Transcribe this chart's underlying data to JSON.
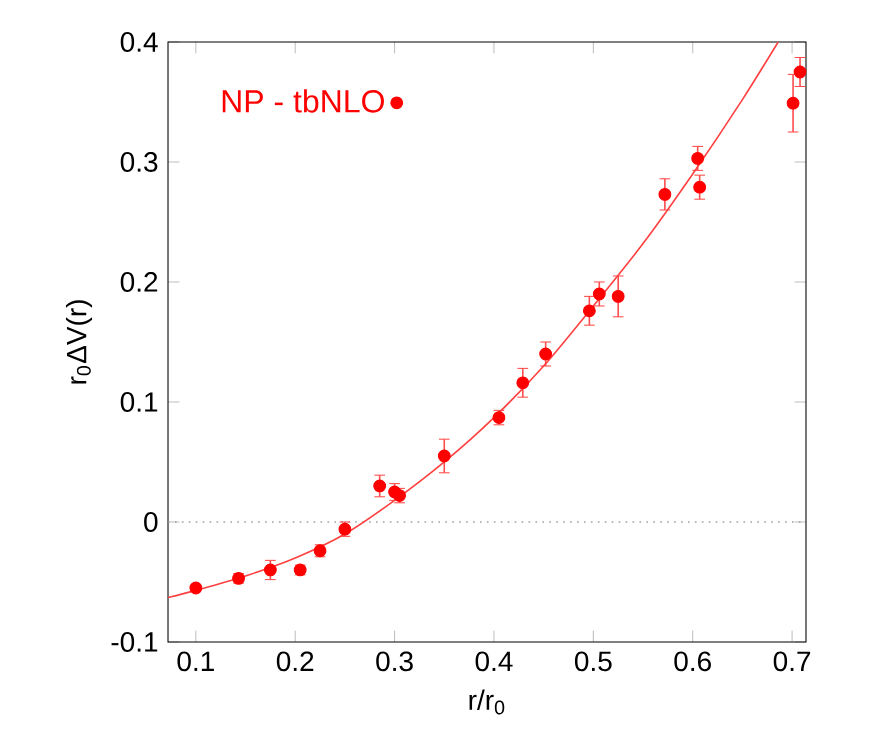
{
  "chart_data": {
    "type": "scatter",
    "xlabel": "r/r$_{0}$",
    "ylabel": "r$_{0}$ΔV(r)",
    "xlim": [
      0.072,
      0.714
    ],
    "ylim": [
      -0.1,
      0.4
    ],
    "xticks": [
      0.1,
      0.2,
      0.3,
      0.4,
      0.5,
      0.6,
      0.7
    ],
    "yticks": [
      -0.1,
      0,
      0.1,
      0.2,
      0.3,
      0.4
    ],
    "legend": "top left",
    "ref_lines": [
      {
        "axis": "y",
        "value": 0,
        "color": "#a0a0a0",
        "line_style": "dotted"
      }
    ],
    "series": [
      {
        "name": "NP - tbNLO",
        "marker": "circle",
        "color": "#ff0000",
        "x": [
          0.1,
          0.143,
          0.175,
          0.205,
          0.225,
          0.25,
          0.285,
          0.3,
          0.305,
          0.35,
          0.405,
          0.429,
          0.452,
          0.496,
          0.506,
          0.525,
          0.572,
          0.605,
          0.607,
          0.701,
          0.708
        ],
        "values": [
          -0.055,
          -0.047,
          -0.04,
          -0.04,
          -0.024,
          -0.006,
          0.03,
          0.025,
          0.022,
          0.055,
          0.087,
          0.116,
          0.14,
          0.176,
          0.19,
          0.188,
          0.273,
          0.303,
          0.279,
          0.349,
          0.375
        ],
        "errors": [
          0.003,
          0.004,
          0.008,
          0.004,
          0.005,
          0.006,
          0.009,
          0.007,
          0.006,
          0.014,
          0.006,
          0.012,
          0.01,
          0.012,
          0.01,
          0.017,
          0.013,
          0.01,
          0.01,
          0.024,
          0.012
        ]
      },
      {
        "type": "line",
        "marker": "none",
        "color": "#ff4040",
        "line_style": "solid",
        "x": [
          0.072,
          0.1,
          0.15,
          0.2,
          0.25,
          0.3,
          0.35,
          0.4,
          0.45,
          0.5,
          0.55,
          0.6,
          0.65,
          0.686
        ],
        "values": [
          -0.063,
          -0.057,
          -0.045,
          -0.03,
          -0.01,
          0.018,
          0.05,
          0.087,
          0.13,
          0.18,
          0.232,
          0.29,
          0.352,
          0.4
        ]
      }
    ]
  }
}
